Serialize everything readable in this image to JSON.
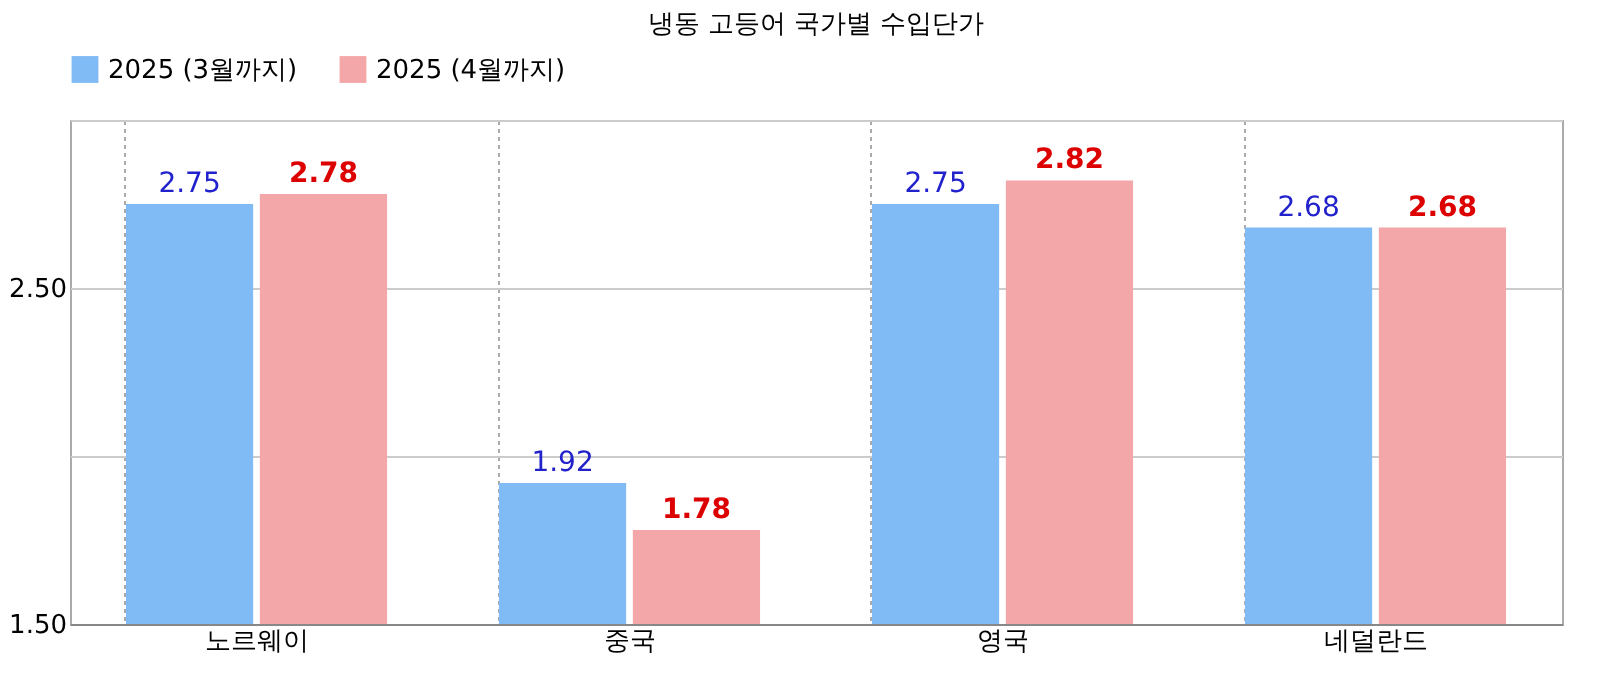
{
  "chart_data": {
    "type": "bar",
    "title": "냉동 고등어 국가별 수입단가",
    "categories": [
      "노르웨이",
      "중국",
      "영국",
      "네덜란드"
    ],
    "series": [
      {
        "name": "2025 (3월까지)",
        "color": "#80bbf6",
        "values": [
          2.75,
          1.92,
          2.75,
          2.68
        ]
      },
      {
        "name": "2025 (4월까지)",
        "color": "#f4a7a8",
        "values": [
          2.78,
          1.78,
          2.82,
          2.68
        ]
      }
    ],
    "ylim": [
      1.5,
      3.0
    ],
    "yticks": [
      {
        "value": 1.5,
        "label": "1.50"
      },
      {
        "value": 2,
        "label": null
      },
      {
        "value": 2.5,
        "label": "2.50"
      },
      {
        "value": 3,
        "label": null
      }
    ],
    "grid": true,
    "legend": "top",
    "data_labels": true
  }
}
